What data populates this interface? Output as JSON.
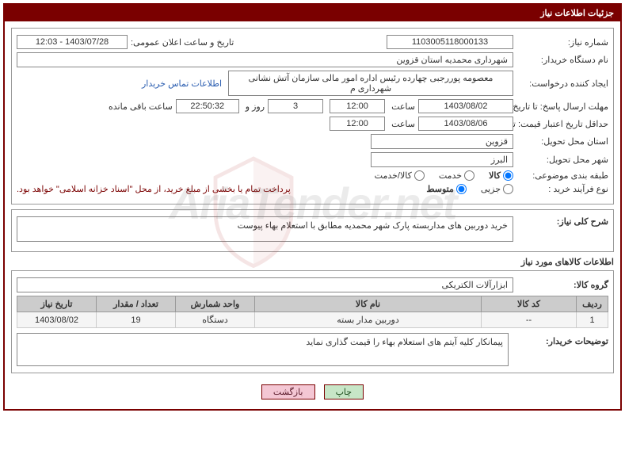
{
  "panel": {
    "title": "جزئیات اطلاعات نیاز"
  },
  "fields": {
    "need_no_label": "شماره نیاز:",
    "need_no": "1103005118000133",
    "announce_label": "تاریخ و ساعت اعلان عمومی:",
    "announce_val": "1403/07/28 - 12:03",
    "buyer_org_label": "نام دستگاه خریدار:",
    "buyer_org": "شهرداری محمدیه استان قزوین",
    "requester_label": "ایجاد کننده درخواست:",
    "requester": "معصومه پوررجبی چهارده رئیس اداره امور مالی سازمان آتش نشانی شهرداری م",
    "contact_link": "اطلاعات تماس خریدار",
    "deadline_send_label": "مهلت ارسال پاسخ: تا تاریخ:",
    "deadline_send_date": "1403/08/02",
    "time_label": "ساعت",
    "deadline_send_time": "12:00",
    "days_label_before": "",
    "days_val": "3",
    "days_after": "روز و",
    "countdown": "22:50:32",
    "remaining_label": "ساعت باقی مانده",
    "validity_label": "حداقل تاریخ اعتبار قیمت: تا تاریخ:",
    "validity_date": "1403/08/06",
    "validity_time": "12:00",
    "province_label": "استان محل تحویل:",
    "province": "قزوین",
    "city_label": "شهر محل تحویل:",
    "city": "البرز",
    "subject_class_label": "طبقه بندی موضوعی:",
    "radio_kala": "کالا",
    "radio_khadamat": "خدمت",
    "radio_kalakhadamat": "کالا/خدمت",
    "buy_process_label": "نوع فرآیند خرید :",
    "radio_partial": "جزیی",
    "radio_medium": "متوسط",
    "payment_note": "پرداخت تمام یا بخشی از مبلغ خرید، از محل \"اسناد خزانه اسلامی\" خواهد بود.",
    "general_desc_label": "شرح کلی نیاز:",
    "general_desc": "خرید دوربین های مداربسته پارک شهر محمدیه مطابق با استعلام بهاء پیوست",
    "items_section_title": "اطلاعات کالاهای مورد نیاز",
    "group_label": "گروه کالا:",
    "group_val": "ابزارآلات الکتریکی",
    "buyer_notes_label": "توضیحات خریدار:",
    "buyer_notes": "پیمانکار کلیه آیتم های استعلام بهاء را قیمت گذاری نماید"
  },
  "table": {
    "headers": {
      "row": "ردیف",
      "code": "کد کالا",
      "name": "نام کالا",
      "unit": "واحد شمارش",
      "qty": "تعداد / مقدار",
      "date": "تاریخ نیاز"
    },
    "rows": [
      {
        "row": "1",
        "code": "--",
        "name": "دوربین مدار بسته",
        "unit": "دستگاه",
        "qty": "19",
        "date": "1403/08/02"
      }
    ],
    "col_widths": {
      "row": "40px",
      "code": "120px",
      "name": "auto",
      "unit": "100px",
      "qty": "100px",
      "date": "100px"
    }
  },
  "buttons": {
    "print": "چاپ",
    "back": "بازگشت"
  },
  "watermark": {
    "text": "AriaTender.net"
  },
  "colors": {
    "brand": "#7a0000",
    "link": "#2a5db0",
    "th_bg": "#cccccc",
    "td_bg": "#f5f5f5"
  }
}
